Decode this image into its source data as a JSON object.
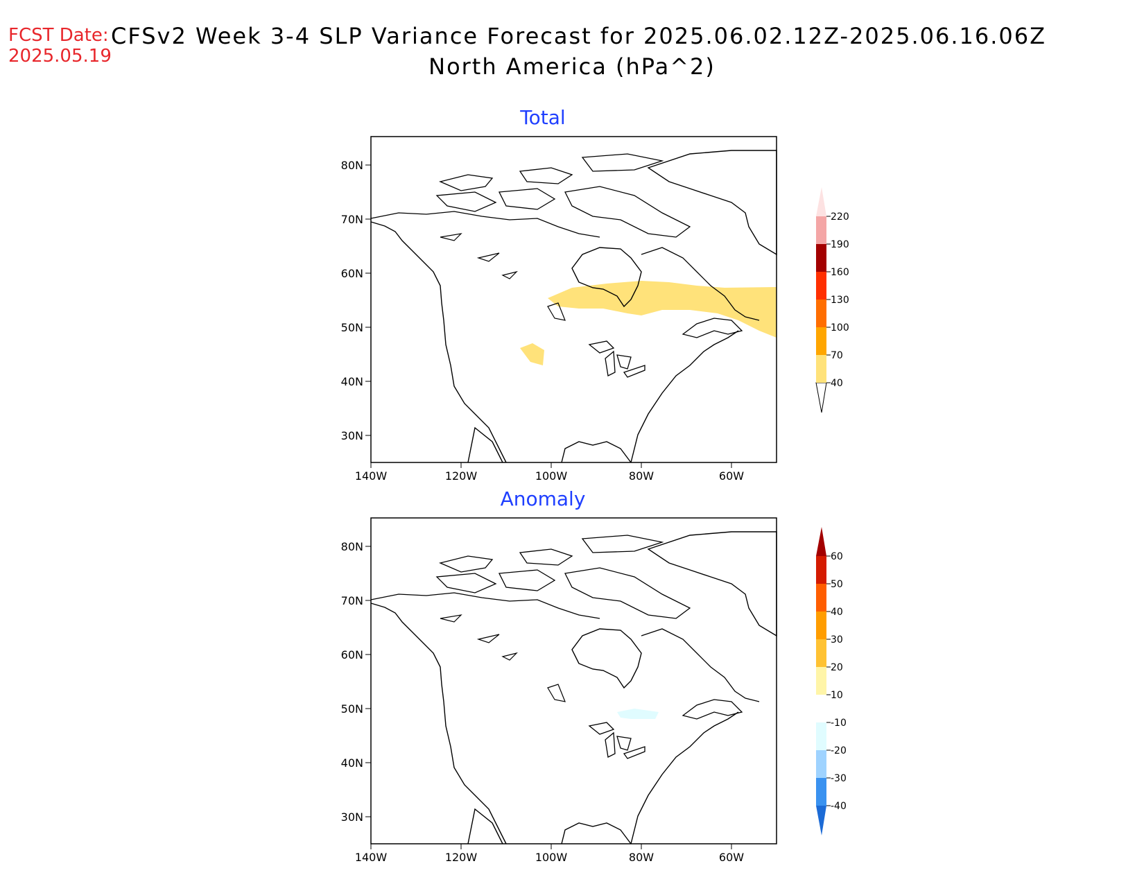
{
  "header": {
    "fcst_label": "FCST Date:",
    "fcst_date": "2025.05.19",
    "title": "CFSv2 Week 3-4 SLP Variance Forecast for 2025.06.02.12Z-2025.06.16.06Z",
    "subtitle": "North America (hPa^2)"
  },
  "panels": [
    {
      "title": "Total",
      "x_ticks": [
        "140W",
        "120W",
        "100W",
        "80W",
        "60W"
      ],
      "y_ticks": [
        "80N",
        "70N",
        "60N",
        "50N",
        "40N",
        "30N"
      ],
      "colorbar": {
        "labels": [
          "40",
          "70",
          "100",
          "130",
          "160",
          "190",
          "220"
        ],
        "colors": [
          "#ffe27a",
          "#ffa600",
          "#ff6e00",
          "#ff2f00",
          "#d41b00",
          "#a30000",
          "#f4a6a6",
          "#fde2e2"
        ]
      },
      "shaded_feature": "band of variance 40-70 across Hudson Bay and Labrador, small patch over Wyoming"
    },
    {
      "title": "Anomaly",
      "x_ticks": [
        "140W",
        "120W",
        "100W",
        "80W",
        "60W"
      ],
      "y_ticks": [
        "80N",
        "70N",
        "60N",
        "50N",
        "40N",
        "30N"
      ],
      "colorbar": {
        "labels": [
          "60",
          "50",
          "40",
          "30",
          "20",
          "10",
          "-10",
          "-20",
          "-30",
          "-40"
        ],
        "colors": [
          "#a30000",
          "#d41b00",
          "#ff5e00",
          "#ff9d00",
          "#ffc233",
          "#fff5a8",
          "#ffffff",
          "#e0fcff",
          "#9fd3ff",
          "#3a92f0",
          "#1c6bd6"
        ]
      },
      "shaded_feature": "small weak negative anomaly patch near Lake Superior"
    }
  ]
}
